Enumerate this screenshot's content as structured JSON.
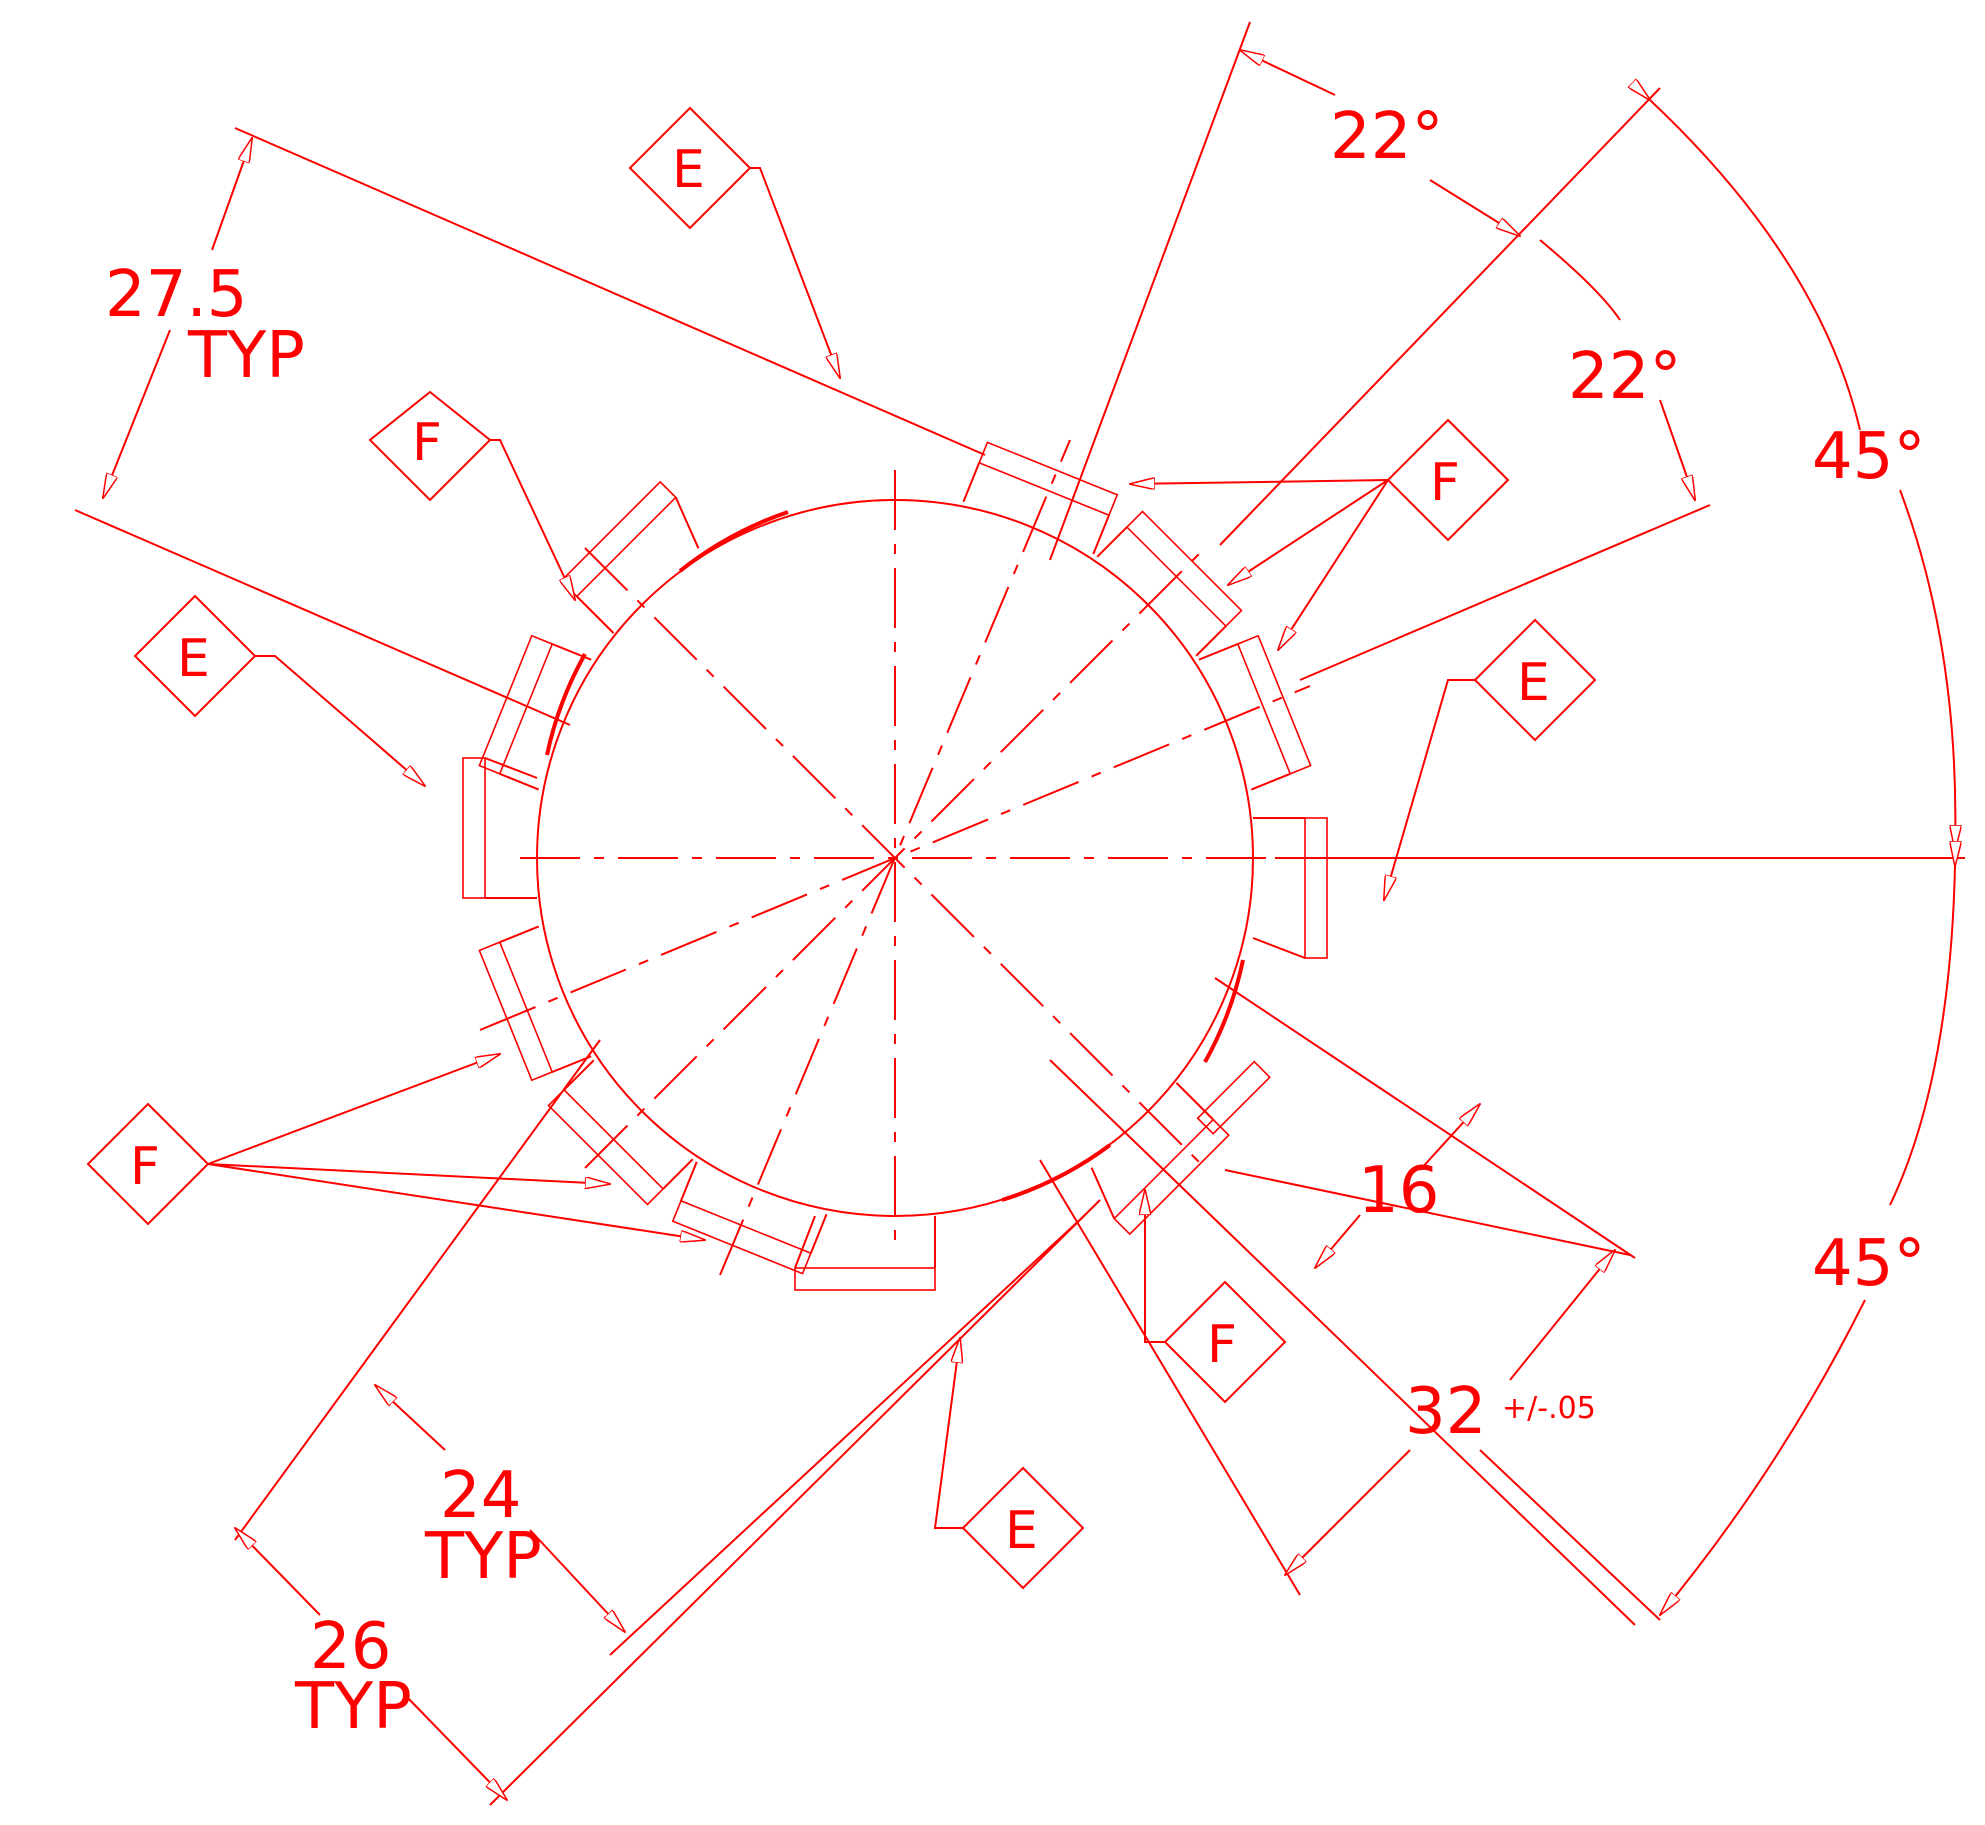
{
  "colors": {
    "ink": "#ff0000",
    "paper": "#ffffff"
  },
  "dimensions": {
    "angle_top_1": "22°",
    "angle_top_2": "22°",
    "angle_right_upper": "45°",
    "angle_right_lower": "45°",
    "d_27_5": "27.5",
    "d_27_5_typ": "TYP",
    "d_16": "16",
    "d_32": "32",
    "d_32_tol": "+/-.05",
    "d_24": "24",
    "d_24_typ": "TYP",
    "d_26": "26",
    "d_26_typ": "TYP"
  },
  "callouts": [
    {
      "letter": "E"
    },
    {
      "letter": "F"
    },
    {
      "letter": "F"
    },
    {
      "letter": "E"
    },
    {
      "letter": "E"
    },
    {
      "letter": "F"
    },
    {
      "letter": "F"
    },
    {
      "letter": "E"
    }
  ]
}
